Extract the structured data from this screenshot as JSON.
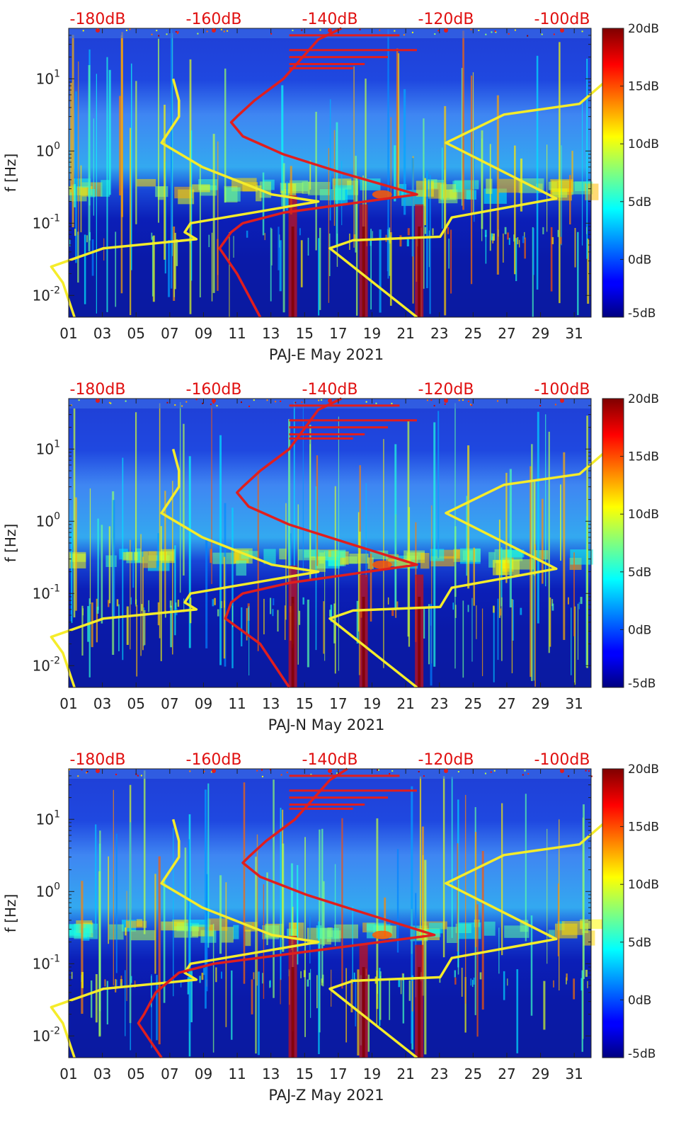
{
  "colors": {
    "noise_model_lines": "#f5ec2a",
    "station_psd_line": "#e01e1e",
    "top_axis_text": "#e01010",
    "colormap": "jet"
  },
  "chart_data": [
    {
      "type": "heatmap",
      "xlabel": "PAJ-E May 2021",
      "ylabel": "f [Hz]",
      "x_ticklabels": [
        "01",
        "03",
        "05",
        "07",
        "09",
        "11",
        "13",
        "15",
        "17",
        "19",
        "21",
        "23",
        "25",
        "27",
        "29",
        "31"
      ],
      "y_ticklabels": [
        "10^-2",
        "10^-1",
        "10^0",
        "10^1"
      ],
      "top_axis_ticklabels": [
        "-180dB",
        "-160dB",
        "-140dB",
        "-120dB",
        "-100dB"
      ],
      "colorbar_ticklabels": [
        "20dB",
        "15dB",
        "10dB",
        "5dB",
        "0dB",
        "-5dB"
      ],
      "colorbar_range_db": [
        -5,
        20
      ],
      "y_scale": "log",
      "ylim_hz": [
        0.005,
        50
      ],
      "xlim_day": [
        1,
        32
      ],
      "top_axis_range_db": [
        -185,
        -95
      ],
      "noise_model_low": [
        [
          -167,
          10
        ],
        [
          -166,
          5
        ],
        [
          -166,
          3
        ],
        [
          -169,
          1.3
        ],
        [
          -162,
          0.6
        ],
        [
          -150,
          0.25
        ],
        [
          -142,
          0.2
        ],
        [
          -164,
          0.1
        ],
        [
          -165,
          0.075
        ],
        [
          -163,
          0.06
        ],
        [
          -179,
          0.045
        ],
        [
          -188,
          0.025
        ],
        [
          -186,
          0.015
        ],
        [
          -184,
          0.005
        ]
      ],
      "noise_model_high": [
        [
          -92,
          10
        ],
        [
          -97,
          4.5
        ],
        [
          -110,
          3.2
        ],
        [
          -120,
          1.3
        ],
        [
          -101,
          0.22
        ],
        [
          -119,
          0.12
        ],
        [
          -121,
          0.065
        ],
        [
          -136,
          0.058
        ],
        [
          -140,
          0.045
        ],
        [
          -125,
          0.005
        ]
      ],
      "station_psd": [
        [
          -138,
          50
        ],
        [
          -142,
          35
        ],
        [
          -148,
          10
        ],
        [
          -153,
          5
        ],
        [
          -156,
          3
        ],
        [
          -157,
          2.5
        ],
        [
          -155,
          1.6
        ],
        [
          -148,
          0.9
        ],
        [
          -138,
          0.5
        ],
        [
          -125,
          0.25
        ],
        [
          -148,
          0.14
        ],
        [
          -155,
          0.1
        ],
        [
          -157,
          0.075
        ],
        [
          -159,
          0.045
        ],
        [
          -156,
          0.02
        ],
        [
          -152,
          0.005
        ]
      ]
    },
    {
      "type": "heatmap",
      "xlabel": "PAJ-N May 2021",
      "ylabel": "f [Hz]",
      "x_ticklabels": [
        "01",
        "03",
        "05",
        "07",
        "09",
        "11",
        "13",
        "15",
        "17",
        "19",
        "21",
        "23",
        "25",
        "27",
        "29",
        "31"
      ],
      "y_ticklabels": [
        "10^-2",
        "10^-1",
        "10^0",
        "10^1"
      ],
      "top_axis_ticklabels": [
        "-180dB",
        "-160dB",
        "-140dB",
        "-120dB",
        "-100dB"
      ],
      "colorbar_ticklabels": [
        "20dB",
        "15dB",
        "10dB",
        "5dB",
        "0dB",
        "-5dB"
      ],
      "colorbar_range_db": [
        -5,
        20
      ],
      "y_scale": "log",
      "ylim_hz": [
        0.005,
        50
      ],
      "xlim_day": [
        1,
        32
      ],
      "top_axis_range_db": [
        -185,
        -95
      ],
      "noise_model_low": [
        [
          -167,
          10
        ],
        [
          -166,
          5
        ],
        [
          -166,
          3
        ],
        [
          -169,
          1.3
        ],
        [
          -162,
          0.6
        ],
        [
          -150,
          0.25
        ],
        [
          -142,
          0.2
        ],
        [
          -164,
          0.1
        ],
        [
          -165,
          0.075
        ],
        [
          -163,
          0.06
        ],
        [
          -179,
          0.045
        ],
        [
          -188,
          0.025
        ],
        [
          -186,
          0.015
        ],
        [
          -184,
          0.005
        ]
      ],
      "noise_model_high": [
        [
          -92,
          10
        ],
        [
          -97,
          4.5
        ],
        [
          -110,
          3.2
        ],
        [
          -120,
          1.3
        ],
        [
          -101,
          0.22
        ],
        [
          -119,
          0.12
        ],
        [
          -121,
          0.065
        ],
        [
          -136,
          0.058
        ],
        [
          -140,
          0.045
        ],
        [
          -125,
          0.005
        ]
      ],
      "station_psd": [
        [
          -138,
          50
        ],
        [
          -142,
          35
        ],
        [
          -147,
          10
        ],
        [
          -152,
          5
        ],
        [
          -155,
          3
        ],
        [
          -156,
          2.5
        ],
        [
          -154,
          1.6
        ],
        [
          -147,
          0.9
        ],
        [
          -137,
          0.5
        ],
        [
          -125,
          0.25
        ],
        [
          -147,
          0.14
        ],
        [
          -155,
          0.1
        ],
        [
          -157,
          0.075
        ],
        [
          -158,
          0.045
        ],
        [
          -152,
          0.02
        ],
        [
          -147,
          0.005
        ]
      ]
    },
    {
      "type": "heatmap",
      "xlabel": "PAJ-Z May 2021",
      "ylabel": "f [Hz]",
      "x_ticklabels": [
        "01",
        "03",
        "05",
        "07",
        "09",
        "11",
        "13",
        "15",
        "17",
        "19",
        "21",
        "23",
        "25",
        "27",
        "29",
        "31"
      ],
      "y_ticklabels": [
        "10^-2",
        "10^-1",
        "10^0",
        "10^1"
      ],
      "top_axis_ticklabels": [
        "-180dB",
        "-160dB",
        "-140dB",
        "-120dB",
        "-100dB"
      ],
      "colorbar_ticklabels": [
        "20dB",
        "15dB",
        "10dB",
        "5dB",
        "0dB",
        "-5dB"
      ],
      "colorbar_range_db": [
        -5,
        20
      ],
      "y_scale": "log",
      "ylim_hz": [
        0.005,
        50
      ],
      "xlim_day": [
        1,
        32
      ],
      "top_axis_range_db": [
        -185,
        -95
      ],
      "noise_model_low": [
        [
          -167,
          10
        ],
        [
          -166,
          5
        ],
        [
          -166,
          3
        ],
        [
          -169,
          1.3
        ],
        [
          -162,
          0.6
        ],
        [
          -150,
          0.25
        ],
        [
          -142,
          0.2
        ],
        [
          -164,
          0.1
        ],
        [
          -165,
          0.075
        ],
        [
          -163,
          0.06
        ],
        [
          -179,
          0.045
        ],
        [
          -188,
          0.025
        ],
        [
          -186,
          0.015
        ],
        [
          -184,
          0.005
        ]
      ],
      "noise_model_high": [
        [
          -92,
          10
        ],
        [
          -97,
          4.5
        ],
        [
          -110,
          3.2
        ],
        [
          -120,
          1.3
        ],
        [
          -101,
          0.22
        ],
        [
          -119,
          0.12
        ],
        [
          -121,
          0.065
        ],
        [
          -136,
          0.058
        ],
        [
          -140,
          0.045
        ],
        [
          -125,
          0.005
        ]
      ],
      "station_psd": [
        [
          -137,
          50
        ],
        [
          -140,
          35
        ],
        [
          -146,
          10
        ],
        [
          -151,
          5
        ],
        [
          -154,
          3
        ],
        [
          -155,
          2.5
        ],
        [
          -152,
          1.6
        ],
        [
          -144,
          0.9
        ],
        [
          -134,
          0.5
        ],
        [
          -122,
          0.25
        ],
        [
          -146,
          0.14
        ],
        [
          -160,
          0.1
        ],
        [
          -166,
          0.075
        ],
        [
          -170,
          0.04
        ],
        [
          -172,
          0.02
        ],
        [
          -173,
          0.015
        ],
        [
          -169,
          0.005
        ]
      ]
    }
  ]
}
